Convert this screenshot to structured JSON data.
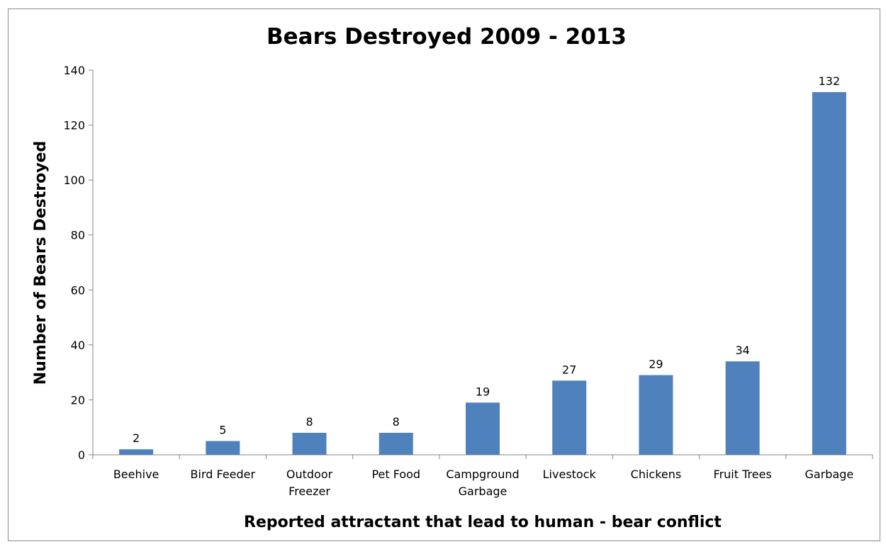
{
  "chart_data": {
    "type": "bar",
    "title": "Bears Destroyed 2009 - 2013",
    "xlabel": "Reported attractant that lead to human - bear conflict",
    "ylabel": "Number of Bears Destroyed",
    "categories": [
      [
        "Beehive"
      ],
      [
        "Bird Feeder"
      ],
      [
        "Outdoor",
        "Freezer"
      ],
      [
        "Pet Food"
      ],
      [
        "Campground",
        "Garbage"
      ],
      [
        "Livestock"
      ],
      [
        "Chickens"
      ],
      [
        "Fruit Trees"
      ],
      [
        "Garbage"
      ]
    ],
    "values": [
      2,
      5,
      8,
      8,
      19,
      27,
      29,
      34,
      132
    ],
    "data_labels": [
      "2",
      "5",
      "8",
      "8",
      "19",
      "27",
      "29",
      "34",
      "132"
    ],
    "ylim": [
      0,
      140
    ],
    "yticks": [
      "0",
      "20",
      "40",
      "60",
      "80",
      "100",
      "120",
      "140"
    ],
    "grid": false,
    "legend": "none",
    "bar_color": "#4f81bd"
  }
}
